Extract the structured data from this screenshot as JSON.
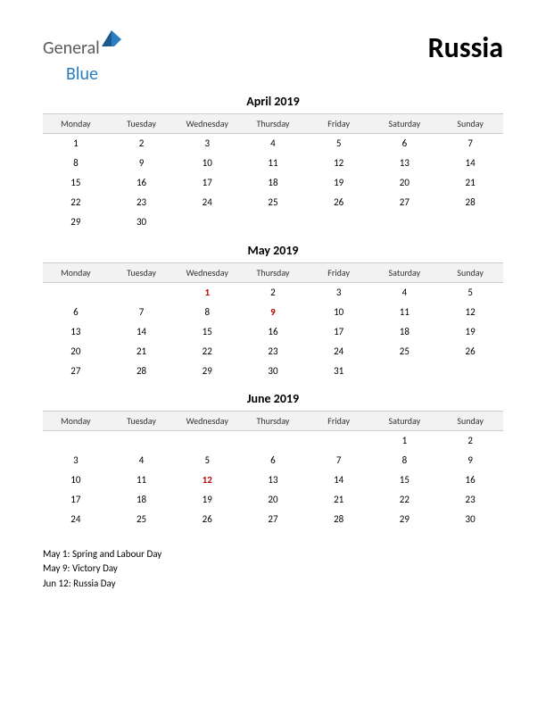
{
  "logo": {
    "general": "General",
    "blue": "Blue"
  },
  "country": "Russia",
  "weekdays": [
    "Monday",
    "Tuesday",
    "Wednesday",
    "Thursday",
    "Friday",
    "Saturday",
    "Sunday"
  ],
  "months": [
    {
      "title": "April 2019",
      "weeks": [
        [
          "1",
          "2",
          "3",
          "4",
          "5",
          "6",
          "7"
        ],
        [
          "8",
          "9",
          "10",
          "11",
          "12",
          "13",
          "14"
        ],
        [
          "15",
          "16",
          "17",
          "18",
          "19",
          "20",
          "21"
        ],
        [
          "22",
          "23",
          "24",
          "25",
          "26",
          "27",
          "28"
        ],
        [
          "29",
          "30",
          "",
          "",
          "",
          "",
          ""
        ]
      ],
      "holidays": []
    },
    {
      "title": "May 2019",
      "weeks": [
        [
          "",
          "",
          "1",
          "2",
          "3",
          "4",
          "5"
        ],
        [
          "6",
          "7",
          "8",
          "9",
          "10",
          "11",
          "12"
        ],
        [
          "13",
          "14",
          "15",
          "16",
          "17",
          "18",
          "19"
        ],
        [
          "20",
          "21",
          "22",
          "23",
          "24",
          "25",
          "26"
        ],
        [
          "27",
          "28",
          "29",
          "30",
          "31",
          "",
          ""
        ]
      ],
      "holidays": [
        "1",
        "9"
      ]
    },
    {
      "title": "June 2019",
      "weeks": [
        [
          "",
          "",
          "",
          "",
          "",
          "1",
          "2"
        ],
        [
          "3",
          "4",
          "5",
          "6",
          "7",
          "8",
          "9"
        ],
        [
          "10",
          "11",
          "12",
          "13",
          "14",
          "15",
          "16"
        ],
        [
          "17",
          "18",
          "19",
          "20",
          "21",
          "22",
          "23"
        ],
        [
          "24",
          "25",
          "26",
          "27",
          "28",
          "29",
          "30"
        ]
      ],
      "holidays": [
        "12"
      ]
    }
  ],
  "holiday_list": [
    "May 1: Spring and Labour Day",
    "May 9: Victory Day",
    "Jun 12: Russia Day"
  ],
  "colors": {
    "header_bg": "#f2f2f2",
    "header_border": "#cccccc",
    "holiday_text": "#c00000",
    "logo_gray": "#5a5a5a",
    "logo_blue": "#2b7ec2"
  }
}
